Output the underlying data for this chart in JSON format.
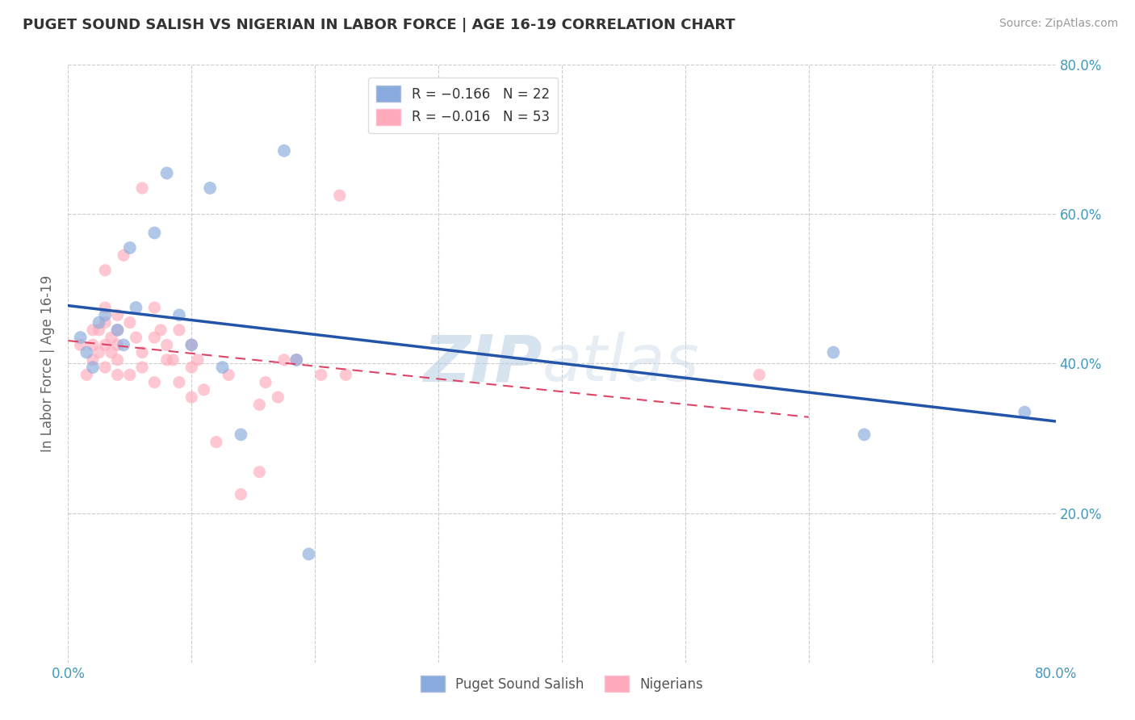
{
  "title": "PUGET SOUND SALISH VS NIGERIAN IN LABOR FORCE | AGE 16-19 CORRELATION CHART",
  "source": "Source: ZipAtlas.com",
  "ylabel": "In Labor Force | Age 16-19",
  "xlim": [
    0.0,
    0.8
  ],
  "ylim": [
    0.0,
    0.8
  ],
  "xtick_labels": [
    "0.0%",
    "",
    "",
    "",
    "",
    "",
    "",
    "",
    "80.0%"
  ],
  "xtick_vals": [
    0.0,
    0.1,
    0.2,
    0.3,
    0.4,
    0.5,
    0.6,
    0.7,
    0.8
  ],
  "ytick_labels": [
    "20.0%",
    "40.0%",
    "60.0%",
    "80.0%"
  ],
  "ytick_vals": [
    0.2,
    0.4,
    0.6,
    0.8
  ],
  "grid_color": "#cccccc",
  "background_color": "#ffffff",
  "blue_color": "#88aadd",
  "blue_edge_color": "#88aadd",
  "pink_color": "#ffaabb",
  "pink_edge_color": "#ffaabb",
  "blue_line_color": "#2255aa",
  "pink_line_color": "#dd4466",
  "legend_R_blue": "R = −0.166",
  "legend_N_blue": "N = 22",
  "legend_R_pink": "R = −0.016",
  "legend_N_pink": "N = 53",
  "legend_label_blue": "Puget Sound Salish",
  "legend_label_pink": "Nigerians",
  "watermark_zip": "ZIP",
  "watermark_atlas": "atlas",
  "blue_x": [
    0.01,
    0.015,
    0.02,
    0.025,
    0.03,
    0.04,
    0.045,
    0.05,
    0.055,
    0.07,
    0.08,
    0.09,
    0.1,
    0.115,
    0.125,
    0.14,
    0.175,
    0.185,
    0.195,
    0.62,
    0.645,
    0.775
  ],
  "blue_y": [
    0.435,
    0.415,
    0.395,
    0.455,
    0.465,
    0.445,
    0.425,
    0.555,
    0.475,
    0.575,
    0.655,
    0.465,
    0.425,
    0.635,
    0.395,
    0.305,
    0.685,
    0.405,
    0.145,
    0.415,
    0.305,
    0.335
  ],
  "pink_x": [
    0.01,
    0.015,
    0.02,
    0.02,
    0.02,
    0.025,
    0.025,
    0.03,
    0.03,
    0.03,
    0.03,
    0.03,
    0.035,
    0.035,
    0.04,
    0.04,
    0.04,
    0.04,
    0.04,
    0.045,
    0.05,
    0.05,
    0.055,
    0.06,
    0.06,
    0.06,
    0.07,
    0.07,
    0.07,
    0.075,
    0.08,
    0.08,
    0.085,
    0.09,
    0.09,
    0.1,
    0.1,
    0.1,
    0.105,
    0.11,
    0.12,
    0.13,
    0.14,
    0.155,
    0.155,
    0.16,
    0.17,
    0.175,
    0.185,
    0.205,
    0.22,
    0.225,
    0.56
  ],
  "pink_y": [
    0.425,
    0.385,
    0.445,
    0.425,
    0.405,
    0.445,
    0.415,
    0.525,
    0.475,
    0.455,
    0.425,
    0.395,
    0.435,
    0.415,
    0.465,
    0.445,
    0.425,
    0.405,
    0.385,
    0.545,
    0.455,
    0.385,
    0.435,
    0.415,
    0.395,
    0.635,
    0.475,
    0.435,
    0.375,
    0.445,
    0.425,
    0.405,
    0.405,
    0.375,
    0.445,
    0.425,
    0.395,
    0.355,
    0.405,
    0.365,
    0.295,
    0.385,
    0.225,
    0.345,
    0.255,
    0.375,
    0.355,
    0.405,
    0.405,
    0.385,
    0.625,
    0.385,
    0.385
  ]
}
